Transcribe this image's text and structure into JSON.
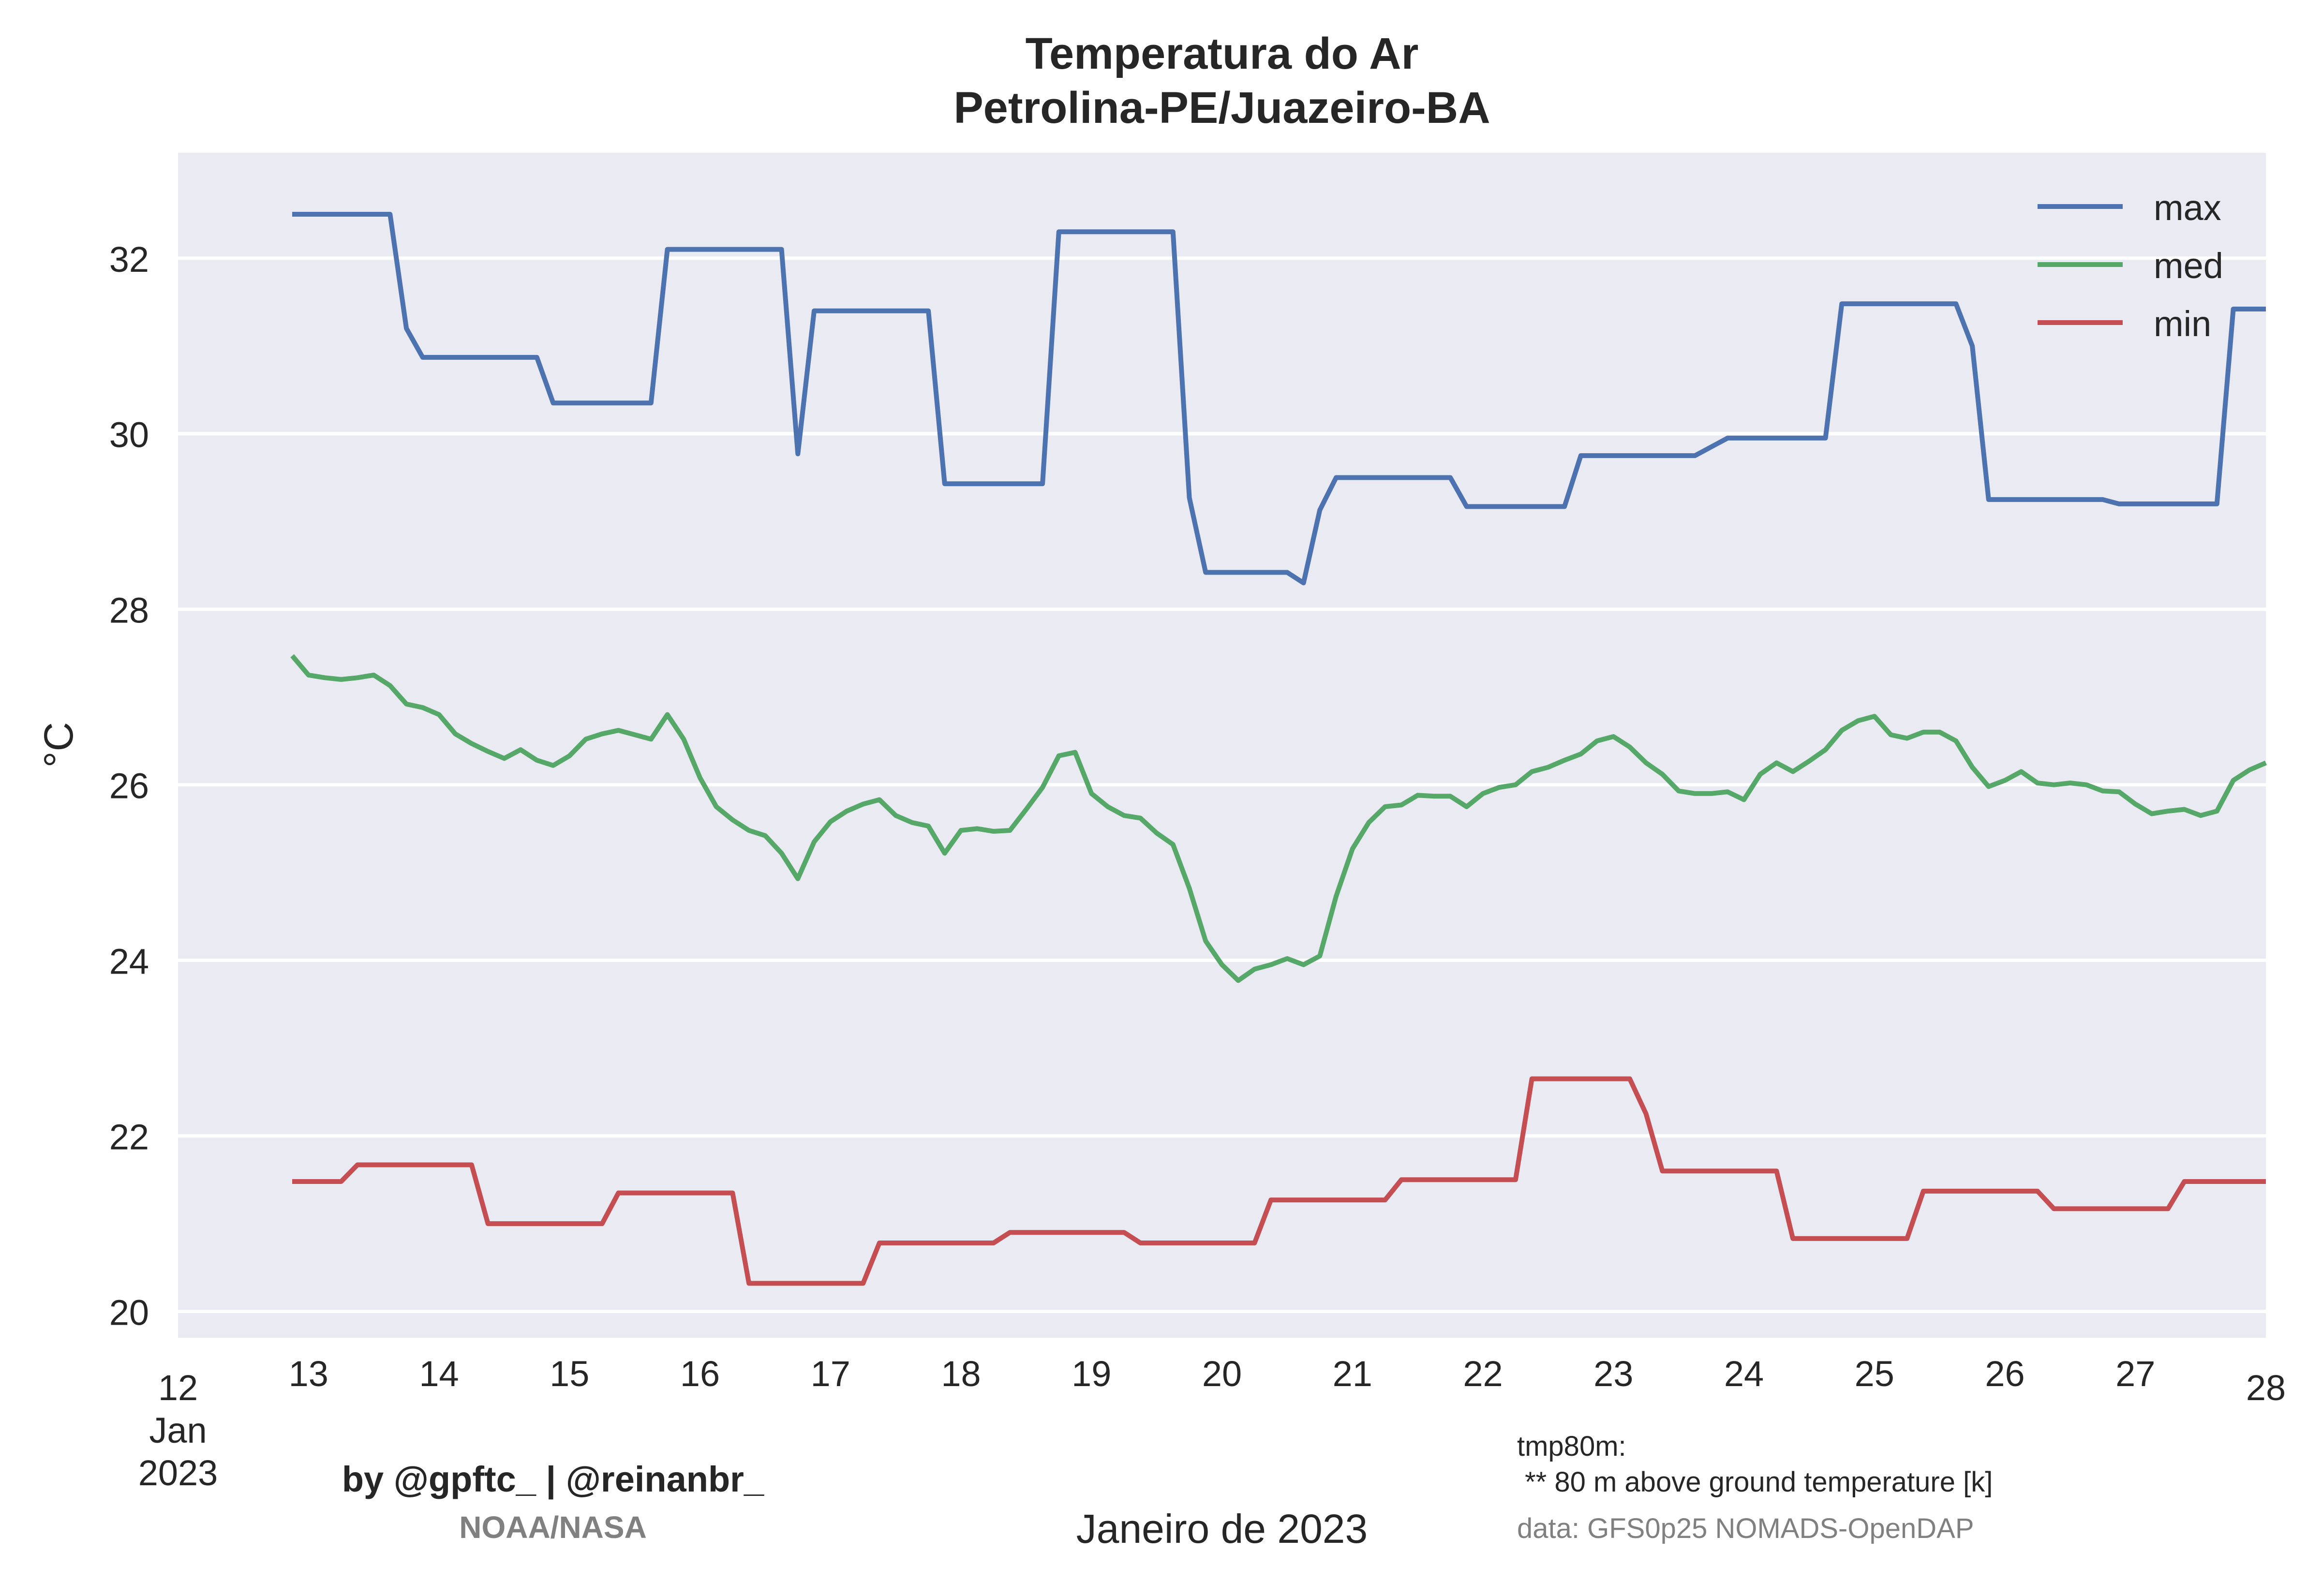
{
  "chart_data": {
    "type": "line",
    "title_line1": "Temperatura do Ar",
    "title_line2": "Petrolina-PE/Juazeiro-BA",
    "xlabel": "Janeiro de 2023",
    "ylabel": "°C",
    "xlim": [
      12,
      28
    ],
    "ylim": [
      19.7,
      33.2
    ],
    "yticks": [
      20,
      22,
      24,
      26,
      28,
      30,
      32
    ],
    "xticks": [
      {
        "x": 12,
        "lines": [
          "12",
          "Jan",
          "2023"
        ]
      },
      {
        "x": 13,
        "lines": [
          "13"
        ]
      },
      {
        "x": 14,
        "lines": [
          "14"
        ]
      },
      {
        "x": 15,
        "lines": [
          "15"
        ]
      },
      {
        "x": 16,
        "lines": [
          "16"
        ]
      },
      {
        "x": 17,
        "lines": [
          "17"
        ]
      },
      {
        "x": 18,
        "lines": [
          "18"
        ]
      },
      {
        "x": 19,
        "lines": [
          "19"
        ]
      },
      {
        "x": 20,
        "lines": [
          "20"
        ]
      },
      {
        "x": 21,
        "lines": [
          "21"
        ]
      },
      {
        "x": 22,
        "lines": [
          "22"
        ]
      },
      {
        "x": 23,
        "lines": [
          "23"
        ]
      },
      {
        "x": 24,
        "lines": [
          "24"
        ]
      },
      {
        "x": 25,
        "lines": [
          "25"
        ]
      },
      {
        "x": 26,
        "lines": [
          "26"
        ]
      },
      {
        "x": 27,
        "lines": [
          "27"
        ]
      },
      {
        "x": 28,
        "lines": [
          "28"
        ]
      }
    ],
    "grid": true,
    "legend_position": "top-right",
    "series": [
      {
        "name": "max",
        "color": "#4c72b0",
        "points": [
          [
            12.875,
            32.5
          ],
          [
            13.625,
            32.5
          ],
          [
            13.75,
            31.2
          ],
          [
            13.875,
            30.87
          ],
          [
            14.75,
            30.87
          ],
          [
            14.875,
            30.35
          ],
          [
            15.625,
            30.35
          ],
          [
            15.75,
            32.1
          ],
          [
            16.625,
            32.1
          ],
          [
            16.75,
            29.77
          ],
          [
            16.875,
            31.4
          ],
          [
            17.75,
            31.4
          ],
          [
            17.875,
            29.43
          ],
          [
            18.625,
            29.43
          ],
          [
            18.75,
            32.3
          ],
          [
            19.625,
            32.3
          ],
          [
            19.75,
            29.27
          ],
          [
            19.875,
            28.42
          ],
          [
            20.5,
            28.42
          ],
          [
            20.625,
            28.3
          ],
          [
            20.75,
            29.13
          ],
          [
            20.875,
            29.5
          ],
          [
            21.75,
            29.5
          ],
          [
            21.875,
            29.17
          ],
          [
            22.625,
            29.17
          ],
          [
            22.75,
            29.75
          ],
          [
            23.625,
            29.75
          ],
          [
            23.875,
            29.95
          ],
          [
            24.625,
            29.95
          ],
          [
            24.75,
            31.48
          ],
          [
            25.625,
            31.48
          ],
          [
            25.75,
            31.0
          ],
          [
            25.875,
            29.25
          ],
          [
            26.75,
            29.25
          ],
          [
            26.875,
            29.2
          ],
          [
            27.625,
            29.2
          ],
          [
            27.75,
            31.42
          ],
          [
            28.0,
            31.42
          ]
        ]
      },
      {
        "name": "med",
        "color": "#55a868",
        "points": [
          [
            12.875,
            27.47
          ],
          [
            13.0,
            27.25
          ],
          [
            13.125,
            27.22
          ],
          [
            13.25,
            27.2
          ],
          [
            13.375,
            27.22
          ],
          [
            13.5,
            27.25
          ],
          [
            13.625,
            27.13
          ],
          [
            13.75,
            26.92
          ],
          [
            13.875,
            26.88
          ],
          [
            14.0,
            26.8
          ],
          [
            14.125,
            26.58
          ],
          [
            14.25,
            26.47
          ],
          [
            14.375,
            26.38
          ],
          [
            14.5,
            26.3
          ],
          [
            14.625,
            26.4
          ],
          [
            14.75,
            26.28
          ],
          [
            14.875,
            26.22
          ],
          [
            15.0,
            26.33
          ],
          [
            15.125,
            26.52
          ],
          [
            15.25,
            26.58
          ],
          [
            15.375,
            26.62
          ],
          [
            15.5,
            26.57
          ],
          [
            15.625,
            26.52
          ],
          [
            15.75,
            26.8
          ],
          [
            15.875,
            26.52
          ],
          [
            16.0,
            26.08
          ],
          [
            16.125,
            25.75
          ],
          [
            16.25,
            25.6
          ],
          [
            16.375,
            25.48
          ],
          [
            16.5,
            25.42
          ],
          [
            16.625,
            25.22
          ],
          [
            16.75,
            24.93
          ],
          [
            16.875,
            25.35
          ],
          [
            17.0,
            25.58
          ],
          [
            17.125,
            25.7
          ],
          [
            17.25,
            25.78
          ],
          [
            17.375,
            25.83
          ],
          [
            17.5,
            25.65
          ],
          [
            17.625,
            25.57
          ],
          [
            17.75,
            25.53
          ],
          [
            17.875,
            25.22
          ],
          [
            18.0,
            25.48
          ],
          [
            18.125,
            25.5
          ],
          [
            18.25,
            25.47
          ],
          [
            18.375,
            25.48
          ],
          [
            18.5,
            25.72
          ],
          [
            18.625,
            25.97
          ],
          [
            18.75,
            26.33
          ],
          [
            18.875,
            26.37
          ],
          [
            19.0,
            25.9
          ],
          [
            19.125,
            25.75
          ],
          [
            19.25,
            25.65
          ],
          [
            19.375,
            25.62
          ],
          [
            19.5,
            25.45
          ],
          [
            19.625,
            25.32
          ],
          [
            19.75,
            24.82
          ],
          [
            19.875,
            24.22
          ],
          [
            20.0,
            23.95
          ],
          [
            20.125,
            23.77
          ],
          [
            20.25,
            23.9
          ],
          [
            20.375,
            23.95
          ],
          [
            20.5,
            24.02
          ],
          [
            20.625,
            23.95
          ],
          [
            20.75,
            24.05
          ],
          [
            20.875,
            24.73
          ],
          [
            21.0,
            25.27
          ],
          [
            21.125,
            25.57
          ],
          [
            21.25,
            25.75
          ],
          [
            21.375,
            25.77
          ],
          [
            21.5,
            25.88
          ],
          [
            21.625,
            25.87
          ],
          [
            21.75,
            25.87
          ],
          [
            21.875,
            25.75
          ],
          [
            22.0,
            25.9
          ],
          [
            22.125,
            25.97
          ],
          [
            22.25,
            26.0
          ],
          [
            22.375,
            26.15
          ],
          [
            22.5,
            26.2
          ],
          [
            22.625,
            26.28
          ],
          [
            22.75,
            26.35
          ],
          [
            22.875,
            26.5
          ],
          [
            23.0,
            26.55
          ],
          [
            23.125,
            26.43
          ],
          [
            23.25,
            26.25
          ],
          [
            23.375,
            26.12
          ],
          [
            23.5,
            25.93
          ],
          [
            23.625,
            25.9
          ],
          [
            23.75,
            25.9
          ],
          [
            23.875,
            25.92
          ],
          [
            24.0,
            25.83
          ],
          [
            24.125,
            26.12
          ],
          [
            24.25,
            26.25
          ],
          [
            24.375,
            26.15
          ],
          [
            24.5,
            26.27
          ],
          [
            24.625,
            26.4
          ],
          [
            24.75,
            26.62
          ],
          [
            24.875,
            26.73
          ],
          [
            25.0,
            26.78
          ],
          [
            25.125,
            26.57
          ],
          [
            25.25,
            26.53
          ],
          [
            25.375,
            26.6
          ],
          [
            25.5,
            26.6
          ],
          [
            25.625,
            26.5
          ],
          [
            25.75,
            26.2
          ],
          [
            25.875,
            25.98
          ],
          [
            26.0,
            26.05
          ],
          [
            26.125,
            26.15
          ],
          [
            26.25,
            26.02
          ],
          [
            26.375,
            26.0
          ],
          [
            26.5,
            26.02
          ],
          [
            26.625,
            26.0
          ],
          [
            26.75,
            25.93
          ],
          [
            26.875,
            25.92
          ],
          [
            27.0,
            25.78
          ],
          [
            27.125,
            25.67
          ],
          [
            27.25,
            25.7
          ],
          [
            27.375,
            25.72
          ],
          [
            27.5,
            25.65
          ],
          [
            27.625,
            25.7
          ],
          [
            27.75,
            26.05
          ],
          [
            27.875,
            26.17
          ],
          [
            28.0,
            26.25
          ]
        ]
      },
      {
        "name": "min",
        "color": "#c44e52",
        "points": [
          [
            12.875,
            21.48
          ],
          [
            13.25,
            21.48
          ],
          [
            13.375,
            21.67
          ],
          [
            14.25,
            21.67
          ],
          [
            14.375,
            21.0
          ],
          [
            15.25,
            21.0
          ],
          [
            15.375,
            21.35
          ],
          [
            16.25,
            21.35
          ],
          [
            16.375,
            20.32
          ],
          [
            17.25,
            20.32
          ],
          [
            17.375,
            20.78
          ],
          [
            18.25,
            20.78
          ],
          [
            18.375,
            20.9
          ],
          [
            19.25,
            20.9
          ],
          [
            19.375,
            20.78
          ],
          [
            20.25,
            20.78
          ],
          [
            20.375,
            21.27
          ],
          [
            21.25,
            21.27
          ],
          [
            21.375,
            21.5
          ],
          [
            22.25,
            21.5
          ],
          [
            22.375,
            22.65
          ],
          [
            23.125,
            22.65
          ],
          [
            23.25,
            22.25
          ],
          [
            23.375,
            21.6
          ],
          [
            24.25,
            21.6
          ],
          [
            24.375,
            20.83
          ],
          [
            25.25,
            20.83
          ],
          [
            25.375,
            21.37
          ],
          [
            26.25,
            21.37
          ],
          [
            26.375,
            21.17
          ],
          [
            27.25,
            21.17
          ],
          [
            27.375,
            21.48
          ],
          [
            28.0,
            21.48
          ]
        ]
      }
    ]
  },
  "footer": {
    "credit": "by @gpftc_ | @reinanbr_",
    "source": "NOAA/NASA",
    "variable": "tmp80m:",
    "variable_desc": " ** 80 m above ground temperature [k]",
    "data_source": "data: GFS0p25 NOMADS-OpenDAP"
  },
  "colors": {
    "plot_bg": "#eaeaf2",
    "grid": "#ffffff"
  }
}
